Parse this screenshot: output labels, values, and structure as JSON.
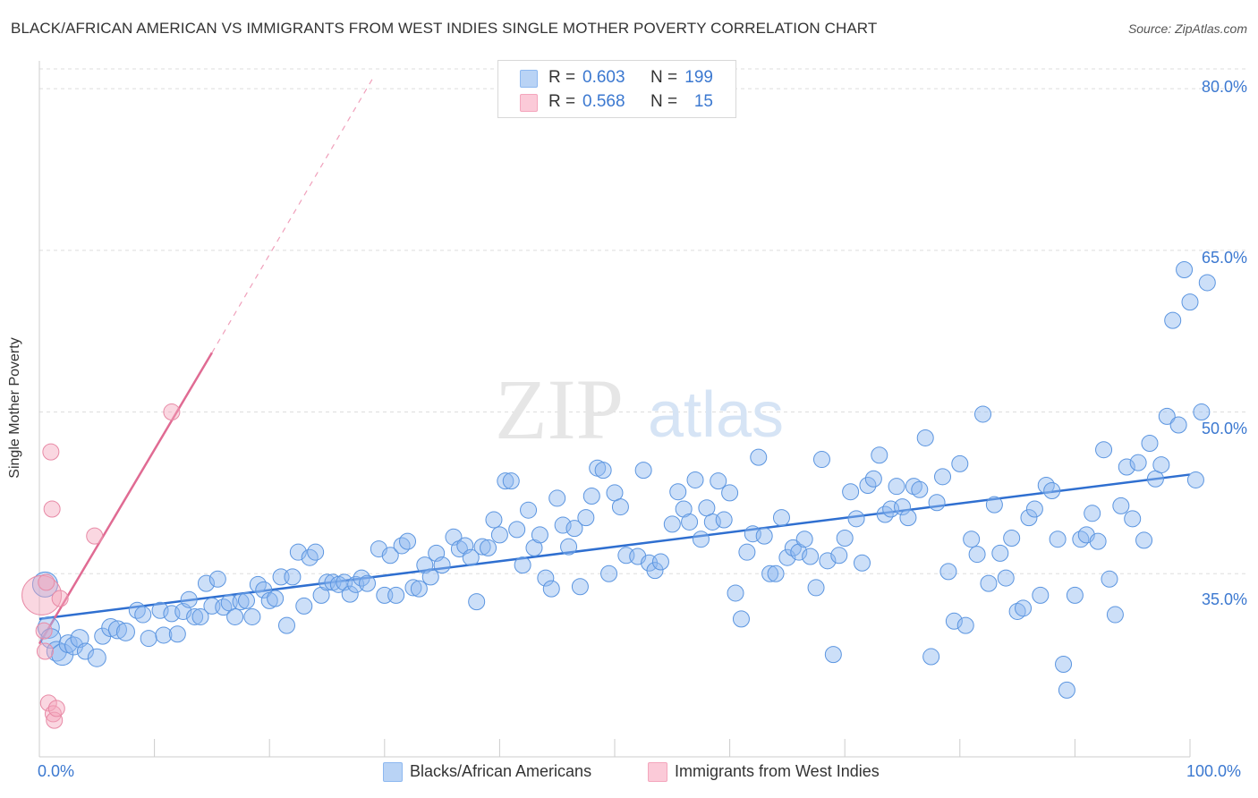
{
  "title": "BLACK/AFRICAN AMERICAN VS IMMIGRANTS FROM WEST INDIES SINGLE MOTHER POVERTY CORRELATION CHART",
  "source": "Source: ZipAtlas.com",
  "watermark": {
    "zip": "ZIP",
    "atlas": "atlas"
  },
  "legend": {
    "rows": [
      {
        "r_label": "R =",
        "r_value": "0.603",
        "n_label": "N =",
        "n_value": "199",
        "color": "#8db8f0"
      },
      {
        "r_label": "R =",
        "r_value": "0.568",
        "n_label": "N =",
        "n_value": "15",
        "color": "#f4a6bd"
      }
    ]
  },
  "bottom_legend": {
    "series1": "Blacks/African Americans",
    "series2": "Immigrants from West Indies"
  },
  "chart_data": {
    "type": "scatter",
    "xlabel": "",
    "ylabel": "Single Mother Poverty",
    "xlim": [
      0,
      100
    ],
    "ylim": [
      20,
      82
    ],
    "x_tick_labels": [
      "0.0%",
      "100.0%"
    ],
    "y_ticks": [
      {
        "value": 35,
        "label": "35.0%"
      },
      {
        "value": 50,
        "label": "50.0%"
      },
      {
        "value": 65,
        "label": "65.0%"
      },
      {
        "value": 80,
        "label": "80.0%"
      }
    ],
    "grid": "horizontal dashed",
    "series": [
      {
        "name": "Blacks/African Americans",
        "color": "#8db8f0",
        "stroke": "#5b95e0",
        "trend": {
          "x": [
            0,
            100
          ],
          "y": [
            30.8,
            44.2
          ]
        },
        "points": [
          [
            0.5,
            34.0,
            14
          ],
          [
            0.8,
            30.0,
            12
          ],
          [
            1.0,
            29.0,
            11
          ],
          [
            1.5,
            27.8,
            11
          ],
          [
            2.0,
            27.5,
            12
          ],
          [
            2.5,
            28.5,
            10
          ],
          [
            3.0,
            28.3,
            10
          ],
          [
            3.5,
            29.0,
            10
          ],
          [
            4.0,
            27.8,
            9
          ],
          [
            5.0,
            27.2,
            10
          ],
          [
            5.5,
            29.2,
            9
          ],
          [
            6.2,
            30.0,
            10
          ],
          [
            6.8,
            29.8,
            10
          ],
          [
            7.5,
            29.6,
            10
          ],
          [
            8.5,
            31.6,
            9
          ],
          [
            9.0,
            31.2,
            9
          ],
          [
            9.5,
            29.0,
            9
          ],
          [
            10.5,
            31.6,
            9
          ],
          [
            10.8,
            29.3,
            9
          ],
          [
            11.5,
            31.3,
            9
          ],
          [
            12.0,
            29.4,
            9
          ],
          [
            12.5,
            31.5,
            9
          ],
          [
            13.0,
            32.6,
            9
          ],
          [
            13.5,
            31.0,
            9
          ],
          [
            14.0,
            31.0,
            9
          ],
          [
            14.5,
            34.1,
            9
          ],
          [
            15.0,
            32.0,
            9
          ],
          [
            15.5,
            34.5,
            9
          ],
          [
            16.0,
            31.9,
            9
          ],
          [
            16.5,
            32.3,
            9
          ],
          [
            17.0,
            31.0,
            9
          ],
          [
            17.5,
            32.4,
            9
          ],
          [
            18.0,
            32.5,
            9
          ],
          [
            18.5,
            31.0,
            9
          ],
          [
            19.0,
            34.0,
            9
          ],
          [
            19.5,
            33.5,
            9
          ],
          [
            20.0,
            32.5,
            9
          ],
          [
            20.5,
            32.7,
            9
          ],
          [
            21.0,
            34.7,
            9
          ],
          [
            21.5,
            30.2,
            9
          ],
          [
            22.0,
            34.7,
            9
          ],
          [
            22.5,
            37.0,
            9
          ],
          [
            23.0,
            32.0,
            9
          ],
          [
            23.5,
            36.5,
            9
          ],
          [
            24.0,
            37.0,
            9
          ],
          [
            24.5,
            33.0,
            9
          ],
          [
            25.0,
            34.2,
            9
          ],
          [
            25.5,
            34.2,
            9
          ],
          [
            26.0,
            34.0,
            9
          ],
          [
            26.5,
            34.2,
            9
          ],
          [
            27.0,
            33.1,
            9
          ],
          [
            27.5,
            34.0,
            9
          ],
          [
            28.0,
            34.6,
            9
          ],
          [
            28.5,
            34.1,
            9
          ],
          [
            29.5,
            37.3,
            9
          ],
          [
            30.0,
            33.0,
            9
          ],
          [
            30.5,
            36.7,
            9
          ],
          [
            31.0,
            33.0,
            9
          ],
          [
            31.5,
            37.6,
            9
          ],
          [
            32.0,
            38.0,
            9
          ],
          [
            32.5,
            33.7,
            9
          ],
          [
            33.0,
            33.6,
            9
          ],
          [
            33.5,
            35.8,
            9
          ],
          [
            34.0,
            34.7,
            9
          ],
          [
            34.5,
            36.9,
            9
          ],
          [
            35.0,
            35.8,
            9
          ],
          [
            36.0,
            38.4,
            9
          ],
          [
            36.5,
            37.3,
            9
          ],
          [
            37.0,
            37.6,
            9
          ],
          [
            37.5,
            36.5,
            9
          ],
          [
            38.0,
            32.4,
            9
          ],
          [
            38.5,
            37.5,
            9
          ],
          [
            39.0,
            37.4,
            9
          ],
          [
            39.5,
            40.0,
            9
          ],
          [
            40.0,
            38.6,
            9
          ],
          [
            40.5,
            43.6,
            9
          ],
          [
            41.0,
            43.6,
            9
          ],
          [
            41.5,
            39.1,
            9
          ],
          [
            42.0,
            35.8,
            9
          ],
          [
            42.5,
            40.9,
            9
          ],
          [
            43.0,
            37.4,
            9
          ],
          [
            43.5,
            38.6,
            9
          ],
          [
            44.0,
            34.6,
            9
          ],
          [
            44.5,
            33.6,
            9
          ],
          [
            45.0,
            42.0,
            9
          ],
          [
            45.5,
            39.5,
            9
          ],
          [
            46.0,
            37.5,
            9
          ],
          [
            46.5,
            39.2,
            9
          ],
          [
            47.0,
            33.8,
            9
          ],
          [
            47.5,
            40.2,
            9
          ],
          [
            48.0,
            42.2,
            9
          ],
          [
            48.5,
            44.8,
            9
          ],
          [
            49.0,
            44.6,
            9
          ],
          [
            49.5,
            35.0,
            9
          ],
          [
            50.0,
            42.5,
            9
          ],
          [
            50.5,
            41.2,
            9
          ],
          [
            51.0,
            36.7,
            9
          ],
          [
            52.0,
            36.6,
            9
          ],
          [
            52.5,
            44.6,
            9
          ],
          [
            53.0,
            36.0,
            9
          ],
          [
            53.5,
            35.3,
            9
          ],
          [
            54.0,
            36.1,
            9
          ],
          [
            55.0,
            39.6,
            9
          ],
          [
            55.5,
            42.6,
            9
          ],
          [
            56.0,
            41.0,
            9
          ],
          [
            56.5,
            39.8,
            9
          ],
          [
            57.0,
            43.7,
            9
          ],
          [
            57.5,
            38.2,
            9
          ],
          [
            58.0,
            41.1,
            9
          ],
          [
            58.5,
            39.8,
            9
          ],
          [
            59.0,
            43.6,
            9
          ],
          [
            59.5,
            40.0,
            9
          ],
          [
            60.0,
            42.5,
            9
          ],
          [
            60.5,
            33.2,
            9
          ],
          [
            61.0,
            30.8,
            9
          ],
          [
            61.5,
            37.0,
            9
          ],
          [
            62.0,
            38.7,
            9
          ],
          [
            62.5,
            45.8,
            9
          ],
          [
            63.0,
            38.5,
            9
          ],
          [
            63.5,
            35.0,
            9
          ],
          [
            64.0,
            35.0,
            9
          ],
          [
            64.5,
            40.2,
            9
          ],
          [
            65.0,
            36.5,
            9
          ],
          [
            65.5,
            37.4,
            9
          ],
          [
            66.0,
            37.0,
            9
          ],
          [
            66.5,
            38.2,
            9
          ],
          [
            67.0,
            36.6,
            9
          ],
          [
            67.5,
            33.7,
            9
          ],
          [
            68.0,
            45.6,
            9
          ],
          [
            68.5,
            36.2,
            9
          ],
          [
            69.0,
            27.5,
            9
          ],
          [
            69.5,
            36.7,
            9
          ],
          [
            70.0,
            38.3,
            9
          ],
          [
            70.5,
            42.6,
            9
          ],
          [
            71.0,
            40.1,
            9
          ],
          [
            71.5,
            36.0,
            9
          ],
          [
            72.0,
            43.2,
            9
          ],
          [
            72.5,
            43.8,
            9
          ],
          [
            73.0,
            46.0,
            9
          ],
          [
            73.5,
            40.5,
            9
          ],
          [
            74.0,
            41.0,
            9
          ],
          [
            74.5,
            43.1,
            9
          ],
          [
            75.0,
            41.2,
            9
          ],
          [
            75.5,
            40.2,
            9
          ],
          [
            76.0,
            43.1,
            9
          ],
          [
            76.5,
            42.8,
            9
          ],
          [
            77.0,
            47.6,
            9
          ],
          [
            77.5,
            27.3,
            9
          ],
          [
            78.0,
            41.6,
            9
          ],
          [
            78.5,
            44.0,
            9
          ],
          [
            79.0,
            35.2,
            9
          ],
          [
            79.5,
            30.6,
            9
          ],
          [
            80.0,
            45.2,
            9
          ],
          [
            80.5,
            30.2,
            9
          ],
          [
            81.0,
            38.2,
            9
          ],
          [
            81.5,
            36.8,
            9
          ],
          [
            82.0,
            49.8,
            9
          ],
          [
            82.5,
            34.1,
            9
          ],
          [
            83.0,
            41.4,
            9
          ],
          [
            83.5,
            36.9,
            9
          ],
          [
            84.0,
            34.6,
            9
          ],
          [
            84.5,
            38.3,
            9
          ],
          [
            85.0,
            31.5,
            9
          ],
          [
            85.5,
            31.8,
            9
          ],
          [
            86.0,
            40.2,
            9
          ],
          [
            86.5,
            41.0,
            9
          ],
          [
            87.0,
            33.0,
            9
          ],
          [
            87.5,
            43.2,
            9
          ],
          [
            88.0,
            42.7,
            9
          ],
          [
            88.5,
            38.2,
            9
          ],
          [
            89.0,
            26.6,
            9
          ],
          [
            89.3,
            24.2,
            9
          ],
          [
            90.0,
            33.0,
            9
          ],
          [
            90.5,
            38.2,
            9
          ],
          [
            91.0,
            38.6,
            9
          ],
          [
            91.5,
            40.6,
            9
          ],
          [
            92.0,
            38.0,
            9
          ],
          [
            92.5,
            46.5,
            9
          ],
          [
            93.0,
            34.5,
            9
          ],
          [
            93.5,
            31.2,
            9
          ],
          [
            94.0,
            41.3,
            9
          ],
          [
            94.5,
            44.9,
            9
          ],
          [
            95.0,
            40.1,
            9
          ],
          [
            95.5,
            45.3,
            9
          ],
          [
            96.0,
            38.1,
            9
          ],
          [
            96.5,
            47.1,
            9
          ],
          [
            97.0,
            43.8,
            9
          ],
          [
            97.5,
            45.1,
            9
          ],
          [
            98.0,
            49.6,
            9
          ],
          [
            98.5,
            58.5,
            9
          ],
          [
            99.0,
            48.8,
            9
          ],
          [
            99.5,
            63.2,
            9
          ],
          [
            100.0,
            60.2,
            9
          ],
          [
            100.5,
            43.7,
            9
          ],
          [
            101.0,
            50.0,
            9
          ],
          [
            101.5,
            62.0,
            9
          ]
        ]
      },
      {
        "name": "Immigrants from West Indies",
        "color": "#f4a6bd",
        "stroke": "#e88aa6",
        "trend": {
          "x": [
            0,
            15
          ],
          "y": [
            28.5,
            55.5
          ]
        },
        "trend_dashed": {
          "x": [
            15,
            29
          ],
          "y": [
            55.5,
            81.0
          ]
        },
        "points": [
          [
            0.2,
            33.0,
            22
          ],
          [
            0.4,
            29.7,
            9
          ],
          [
            0.5,
            27.8,
            9
          ],
          [
            0.6,
            34.2,
            9
          ],
          [
            0.8,
            23.0,
            9
          ],
          [
            1.0,
            46.3,
            9
          ],
          [
            1.1,
            41.0,
            9
          ],
          [
            1.2,
            22.0,
            9
          ],
          [
            1.3,
            21.4,
            9
          ],
          [
            1.5,
            22.5,
            9
          ],
          [
            1.8,
            32.7,
            9
          ],
          [
            4.8,
            38.5,
            9
          ],
          [
            11.5,
            50.0,
            9
          ]
        ]
      }
    ]
  }
}
